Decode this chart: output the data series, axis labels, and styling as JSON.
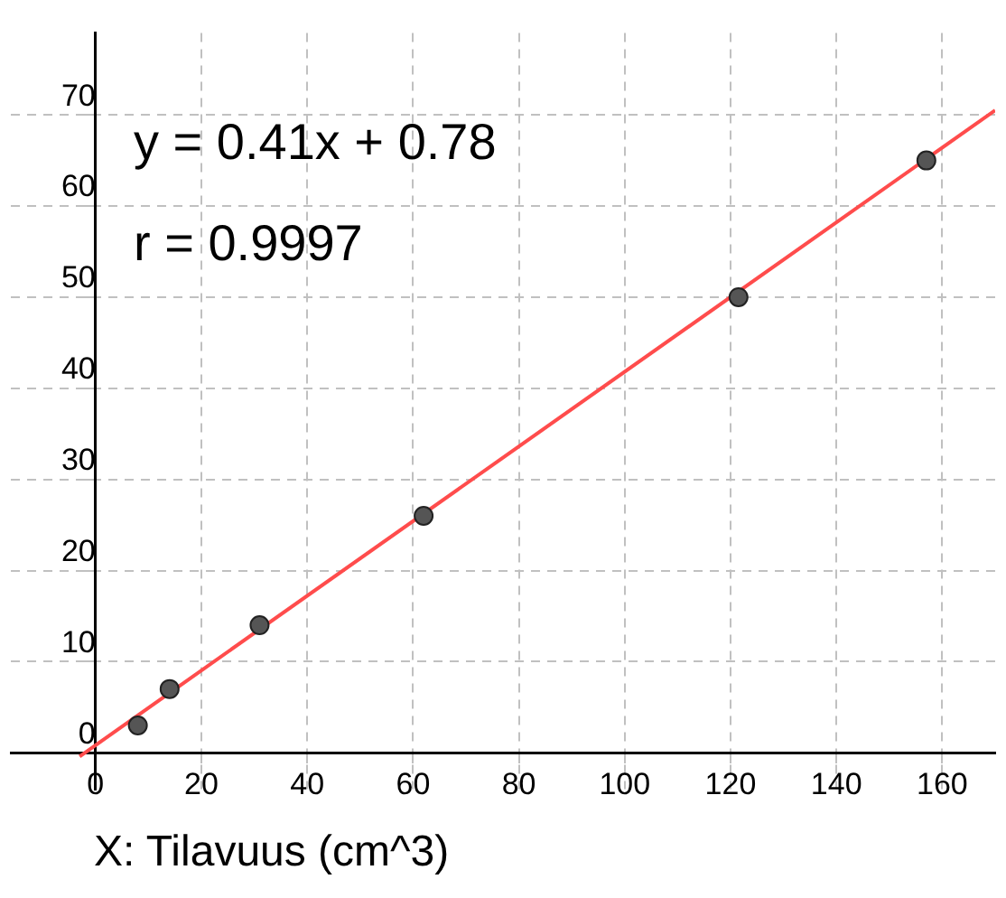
{
  "chart_data": {
    "type": "scatter",
    "xlabel": "X:  Tilavuus (cm^3)",
    "annotations": [
      "y = 0.41x + 0.78",
      "r = 0.9997"
    ],
    "series": [
      {
        "type": "scatter",
        "color": "#555555",
        "marker": "circle",
        "x": [
          8,
          14,
          31,
          62,
          121.5,
          157
        ],
        "values": [
          3,
          7,
          14,
          26,
          50,
          65
        ]
      },
      {
        "type": "line",
        "color": "#ff4c4c",
        "marker": "none",
        "x": [
          -3,
          170
        ],
        "values": [
          -0.4,
          70.5
        ]
      }
    ],
    "xlim": [
      -16,
      170
    ],
    "ylim": [
      -4,
      79
    ],
    "xticks": [
      0,
      20,
      40,
      60,
      80,
      100,
      120,
      140,
      160
    ],
    "yticks": [
      0,
      10,
      20,
      30,
      40,
      50,
      60,
      70
    ],
    "grid": true,
    "legend": false,
    "line_style": "solid"
  }
}
